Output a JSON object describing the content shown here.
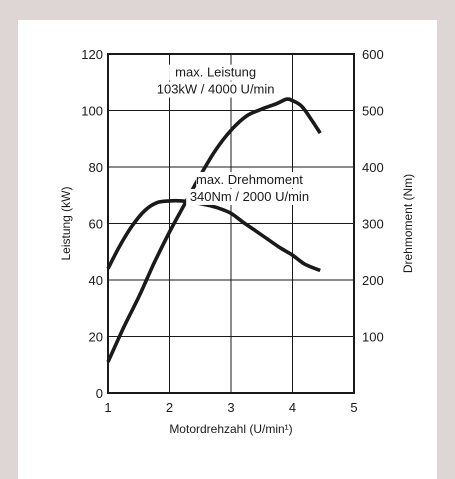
{
  "colors": {
    "background": "#ddd6d4",
    "panel": "#ffffff",
    "ink": "#1a1a1a"
  },
  "chart_data": {
    "type": "line",
    "title": "",
    "xlabel": "Motordrehzahl (U/min¹)",
    "ylabel_left": "Leistung (kW)",
    "ylabel_right": "Drehmoment (Nm)",
    "xlim": [
      1,
      5
    ],
    "ylim_left": [
      0,
      120
    ],
    "ylim_right": [
      0,
      600
    ],
    "xticks": [
      "1",
      "2",
      "3",
      "4",
      "5"
    ],
    "yticks_left": [
      "0",
      "20",
      "40",
      "60",
      "80",
      "100",
      "120"
    ],
    "yticks_right": [
      "100",
      "200",
      "300",
      "400",
      "500",
      "600"
    ],
    "grid": true,
    "series": [
      {
        "axis": "left",
        "x": [
          1.0,
          1.25,
          1.5,
          1.75,
          2.0,
          2.25,
          2.5,
          2.75,
          3.0,
          3.25,
          3.5,
          3.75,
          3.9,
          4.0,
          4.15,
          4.3,
          4.45
        ],
        "values": [
          11,
          23,
          34,
          46,
          57,
          67,
          77,
          86,
          93,
          98,
          100.5,
          102.5,
          104,
          103.5,
          101.5,
          97,
          92
        ]
      },
      {
        "axis": "right",
        "x": [
          1.0,
          1.2,
          1.4,
          1.6,
          1.8,
          2.0,
          2.2,
          2.4,
          2.6,
          2.8,
          3.0,
          3.2,
          3.4,
          3.6,
          3.8,
          4.0,
          4.2,
          4.45
        ],
        "values": [
          220,
          262,
          297,
          323,
          337,
          340,
          340,
          337,
          333,
          327,
          318,
          302,
          287,
          272,
          257,
          244,
          228,
          217
        ]
      }
    ],
    "annotations": [
      {
        "lines": [
          "max. Leistung",
          "103kW / 4000 U/min"
        ],
        "at": [
          2.75,
          112
        ]
      },
      {
        "lines": [
          "max. Drehmoment",
          "340Nm / 2000 U/min"
        ],
        "at": [
          3.3,
          74
        ]
      }
    ]
  }
}
